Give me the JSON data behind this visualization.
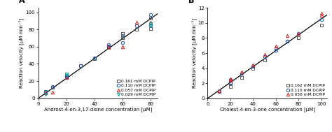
{
  "panel_A": {
    "label": "A",
    "xlabel": "Androst-4-en-3,17-dione concentration [μM]",
    "ylabel": "Reaction velocity [μM min⁻¹]",
    "xlim": [
      0,
      85
    ],
    "ylim": [
      0,
      105
    ],
    "xticks": [
      0,
      20,
      40,
      60,
      80
    ],
    "yticks": [
      0,
      20,
      40,
      60,
      80,
      100
    ],
    "fit_x": [
      0,
      85
    ],
    "fit_slope": 1.155,
    "series": [
      {
        "label": "0.161 mM DCPIP",
        "marker": "s",
        "color": "#555555",
        "x": [
          5,
          10,
          20,
          20,
          30,
          40,
          50,
          50,
          60,
          60,
          70,
          80,
          80
        ],
        "y": [
          8,
          13,
          24,
          26,
          38,
          46,
          59,
          61,
          70,
          75,
          80,
          81,
          93
        ]
      },
      {
        "label": "0.110 mM DCPIP",
        "marker": "o",
        "color": "#2255bb",
        "x": [
          5,
          10,
          20,
          20,
          30,
          40,
          50,
          50,
          60,
          60,
          70,
          80,
          80
        ],
        "y": [
          7,
          14,
          25,
          26,
          38,
          47,
          60,
          62,
          65,
          73,
          84,
          85,
          97
        ]
      },
      {
        "label": "0.057 mM DCPIP",
        "marker": "^",
        "color": "#cc2222",
        "x": [
          5,
          10,
          20,
          50,
          60,
          70,
          80
        ],
        "y": [
          6,
          7,
          24,
          60,
          60,
          88,
          88
        ]
      },
      {
        "label": "0.029 mM DCPIP",
        "marker": "v",
        "color": "#009999",
        "x": [
          5,
          20,
          20,
          80,
          80
        ],
        "y": [
          5,
          27,
          28,
          84,
          87
        ]
      }
    ]
  },
  "panel_B": {
    "label": "B",
    "xlabel": "Cholest-4-en-3-one concentration [μM]",
    "ylabel": "Reaction velocity [μM min⁻¹]",
    "xlim": [
      0,
      105
    ],
    "ylim": [
      0,
      12
    ],
    "xticks": [
      0,
      20,
      40,
      60,
      80,
      100
    ],
    "yticks": [
      0,
      2,
      4,
      6,
      8,
      10,
      12
    ],
    "fit_x": [
      0,
      105
    ],
    "fit_slope": 0.1055,
    "series": [
      {
        "label": "0.162 mM DCPIP",
        "marker": "s",
        "color": "#555555",
        "x": [
          10,
          20,
          20,
          30,
          40,
          50,
          60,
          70,
          80,
          100
        ],
        "y": [
          0.9,
          1.6,
          2.0,
          2.8,
          4.0,
          5.1,
          6.7,
          7.6,
          8.0,
          9.7
        ]
      },
      {
        "label": "0.110 mM DCPIP",
        "marker": "o",
        "color": "#2255bb",
        "x": [
          10,
          20,
          20,
          30,
          40,
          50,
          60,
          70,
          80,
          100
        ],
        "y": [
          1.0,
          2.1,
          2.5,
          3.3,
          4.2,
          5.5,
          6.4,
          7.6,
          8.6,
          10.5
        ]
      },
      {
        "label": "0.058 mM DCPIP",
        "marker": "^",
        "color": "#cc2222",
        "x": [
          10,
          20,
          20,
          30,
          40,
          50,
          60,
          70,
          80,
          100,
          100
        ],
        "y": [
          1.0,
          2.4,
          2.6,
          3.5,
          4.4,
          5.8,
          6.9,
          8.3,
          8.6,
          11.0,
          11.3
        ]
      }
    ]
  }
}
